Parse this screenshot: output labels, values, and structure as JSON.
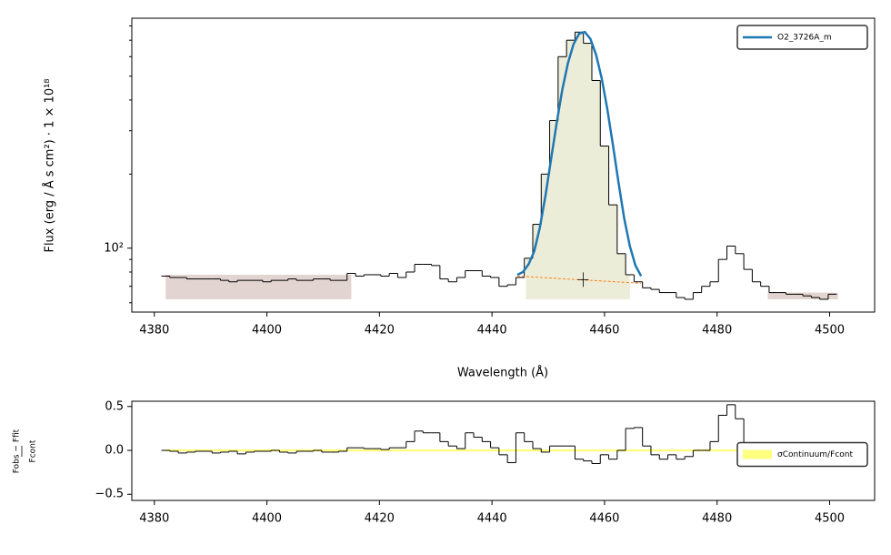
{
  "chart_data": [
    {
      "type": "line",
      "log_y": true,
      "ylabel": "Flux (erg / Å s cm²) · 1 × 10¹⁸",
      "xlabel": "Wavelength (Å)",
      "xlim": [
        4376,
        4508
      ],
      "xticks": [
        4380,
        4400,
        4420,
        4440,
        4460,
        4480,
        4500
      ],
      "ylim": [
        55,
        860
      ],
      "yticks": [
        {
          "value": 100,
          "label": "10²"
        }
      ],
      "yticks_minor": [
        60,
        70,
        80,
        90,
        200,
        300,
        400,
        500,
        600,
        700,
        800
      ],
      "legend": "upper right",
      "spectrum": {
        "color": "#000000",
        "step": 1.5,
        "x": [
          4382,
          4383.5,
          4385,
          4386.5,
          4388,
          4389.5,
          4391,
          4392.5,
          4394,
          4395.5,
          4397,
          4398.5,
          4400,
          4401.5,
          4403,
          4404.5,
          4406,
          4407.5,
          4409,
          4410.5,
          4412,
          4413.5,
          4415,
          4416.5,
          4418,
          4419.5,
          4421,
          4422.5,
          4424,
          4425.5,
          4427,
          4428.5,
          4430,
          4431.5,
          4433,
          4434.5,
          4436,
          4437.5,
          4439,
          4440.5,
          4442,
          4443.5,
          4445,
          4446.5,
          4448,
          4449.5,
          4451,
          4452.5,
          4454,
          4455.5,
          4457,
          4458.5,
          4460,
          4461.5,
          4463,
          4464.5,
          4466,
          4467.5,
          4469,
          4470.5,
          4472,
          4473.5,
          4475,
          4476.5,
          4478,
          4479.5,
          4481,
          4482.5,
          4484,
          4485.5,
          4487,
          4488.5,
          4490,
          4491.5,
          4493,
          4494.5,
          4496,
          4497.5,
          4499,
          4500.5
        ],
        "values": [
          77,
          76,
          76,
          75,
          75,
          75,
          75,
          74,
          73,
          74,
          74,
          74,
          73,
          74,
          74,
          75,
          74,
          74,
          75,
          75,
          74,
          74,
          79,
          77,
          78,
          78,
          77,
          79,
          76,
          80,
          86,
          86,
          85,
          75,
          73,
          76,
          81,
          81,
          77,
          76,
          70,
          71,
          76,
          91,
          125,
          200,
          330,
          600,
          700,
          755,
          680,
          480,
          260,
          150,
          95,
          78,
          73,
          69,
          68,
          66,
          66,
          63,
          62,
          66,
          70,
          73,
          90,
          102,
          95,
          82,
          73,
          70,
          66,
          66,
          65,
          65,
          64,
          63,
          62,
          65
        ]
      },
      "series": [
        {
          "name": "O2_3726A_m",
          "color": "#1f77b4",
          "x": [
            4444.5,
            4445.5,
            4446.5,
            4447.5,
            4448.5,
            4449.5,
            4450.5,
            4451.5,
            4452.5,
            4453.5,
            4454.5,
            4455.5,
            4456.5,
            4457.5,
            4458.5,
            4459.5,
            4460.5,
            4461.5,
            4462.5,
            4463.5,
            4464.5,
            4465.5,
            4466.5
          ],
          "values": [
            78,
            80,
            86,
            97,
            121,
            163,
            230,
            323,
            441,
            565,
            675,
            745,
            756,
            708,
            611,
            490,
            367,
            262,
            184,
            132,
            102,
            85,
            77
          ]
        }
      ],
      "continuum": {
        "color": "#ff7f0e",
        "x": [
          4444.5,
          4466.5
        ],
        "values": [
          77,
          72
        ]
      },
      "bands": [
        {
          "x": [
            4382,
            4415
          ],
          "y": [
            62,
            78
          ],
          "color": "#e2d4d0"
        },
        {
          "x": [
            4489,
            4501.5
          ],
          "y": [
            62,
            66
          ],
          "color": "#e2d4d0"
        }
      ],
      "line_region": {
        "x": [
          4446,
          4464.5
        ],
        "base": 62,
        "color": "#ecedd8"
      },
      "peak_marker": {
        "x": 4456.2,
        "y": 74.5
      }
    },
    {
      "type": "line",
      "ylabel_num": "Fobs − Ffit",
      "ylabel_den": "Fcont",
      "xlim": [
        4376,
        4508
      ],
      "xticks": [
        4380,
        4400,
        4420,
        4440,
        4460,
        4480,
        4500
      ],
      "ylim": [
        -0.57,
        0.56
      ],
      "yticks": [
        {
          "value": -0.5,
          "label": "−0.5"
        },
        {
          "value": 0,
          "label": "0.0"
        },
        {
          "value": 0.5,
          "label": "0.5"
        }
      ],
      "legend": "center right",
      "bands": [
        {
          "name": "σContinuum/Fcont",
          "x": [
            4382,
            4501.5
          ],
          "y": [
            -0.012,
            0.012
          ],
          "color": "#ffff80"
        }
      ],
      "spectrum": {
        "color": "#000000",
        "step": 1.5,
        "x": [
          4382,
          4383.5,
          4385,
          4386.5,
          4388,
          4389.5,
          4391,
          4392.5,
          4394,
          4395.5,
          4397,
          4398.5,
          4400,
          4401.5,
          4403,
          4404.5,
          4406,
          4407.5,
          4409,
          4410.5,
          4412,
          4413.5,
          4415,
          4416.5,
          4418,
          4419.5,
          4421,
          4422.5,
          4424,
          4425.5,
          4427,
          4428.5,
          4430,
          4431.5,
          4433,
          4434.5,
          4436,
          4437.5,
          4439,
          4440.5,
          4442,
          4443.5,
          4445,
          4446.5,
          4448,
          4449.5,
          4451,
          4452.5,
          4454,
          4455.5,
          4457,
          4458.5,
          4460,
          4461.5,
          4463,
          4464.5,
          4466,
          4467.5,
          4469,
          4470.5,
          4472,
          4473.5,
          4475,
          4476.5,
          4478,
          4479.5,
          4481,
          4482.5,
          4484,
          4485.5,
          4487,
          4488.5,
          4490,
          4491.5,
          4493,
          4494.5,
          4496,
          4497.5,
          4499,
          4500.5
        ],
        "values": [
          0,
          -0.01,
          -0.03,
          -0.02,
          -0.01,
          -0.01,
          -0.03,
          -0.02,
          -0.01,
          -0.04,
          -0.02,
          -0.01,
          -0.01,
          0,
          -0.02,
          -0.03,
          -0.01,
          -0.01,
          0,
          -0.02,
          -0.02,
          -0.01,
          0.03,
          0.03,
          0.02,
          0.02,
          0.01,
          0.03,
          0.03,
          0.1,
          0.22,
          0.2,
          0.2,
          0.1,
          0.05,
          0.02,
          0.2,
          0.15,
          0.1,
          0.03,
          -0.05,
          -0.14,
          0.2,
          0.1,
          0.02,
          -0.02,
          0.05,
          0.05,
          0.05,
          -0.1,
          -0.12,
          -0.15,
          -0.05,
          -0.1,
          0,
          0.25,
          0.26,
          0.05,
          -0.05,
          -0.1,
          -0.05,
          -0.1,
          -0.07,
          0,
          0,
          0.1,
          0.4,
          0.52,
          0.36,
          0.05,
          0.02,
          0,
          -0.02,
          -0.01,
          -0.03,
          -0.02,
          -0.01,
          -0.03,
          -0.02,
          0
        ]
      }
    }
  ]
}
